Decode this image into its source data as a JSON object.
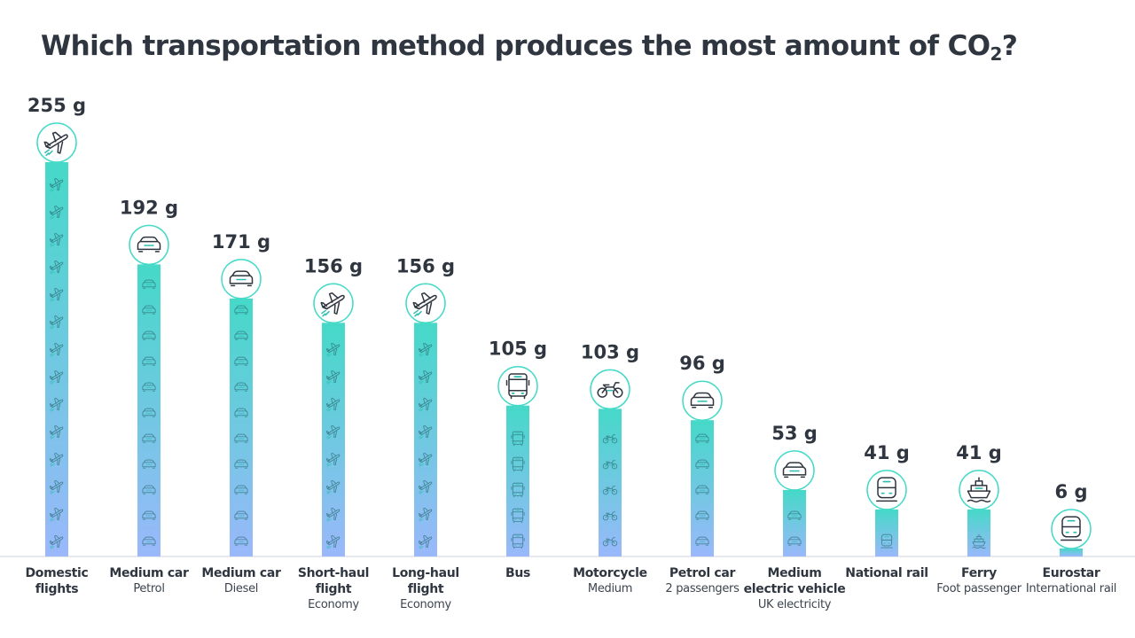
{
  "title_main": "Which transportation method produces the most amount of CO",
  "title_sub": "2",
  "title_end": "?",
  "colors": {
    "bar_top": "#45d9c8",
    "bar_bottom": "#9ab8fb",
    "axis": "#cfd4da",
    "text": "#2f3640",
    "icon": "#2f3640"
  },
  "chart_data": {
    "type": "bar",
    "title": "Which transportation method produces the most amount of CO2?",
    "ylabel": "",
    "unit": "g",
    "categories": [
      "Domestic flights",
      "Medium car",
      "Medium car",
      "Short-haul flight",
      "Long-haul flight",
      "Bus",
      "Motorcycle",
      "Petrol car",
      "Medium electric vehicle",
      "National rail",
      "Ferry",
      "Eurostar"
    ],
    "subtitles": [
      "",
      "Petrol",
      "Diesel",
      "Economy",
      "Economy",
      "",
      "Medium",
      "2 passengers",
      "UK electricity",
      "",
      "Foot passenger",
      "International rail"
    ],
    "values": [
      255,
      192,
      171,
      156,
      156,
      105,
      103,
      96,
      53,
      41,
      41,
      6
    ],
    "value_labels": [
      "255 g",
      "192 g",
      "171 g",
      "156 g",
      "156 g",
      "105 g",
      "103 g",
      "96 g",
      "53 g",
      "41 g",
      "41 g",
      "6 g"
    ],
    "icons": [
      "plane-icon",
      "car-icon",
      "car-icon",
      "plane-icon",
      "plane-icon",
      "bus-icon",
      "motorcycle-icon",
      "car-icon",
      "car-icon",
      "train-icon",
      "ship-icon",
      "train-icon"
    ],
    "ylim": [
      0,
      255
    ],
    "grid": false,
    "legend": "none"
  }
}
